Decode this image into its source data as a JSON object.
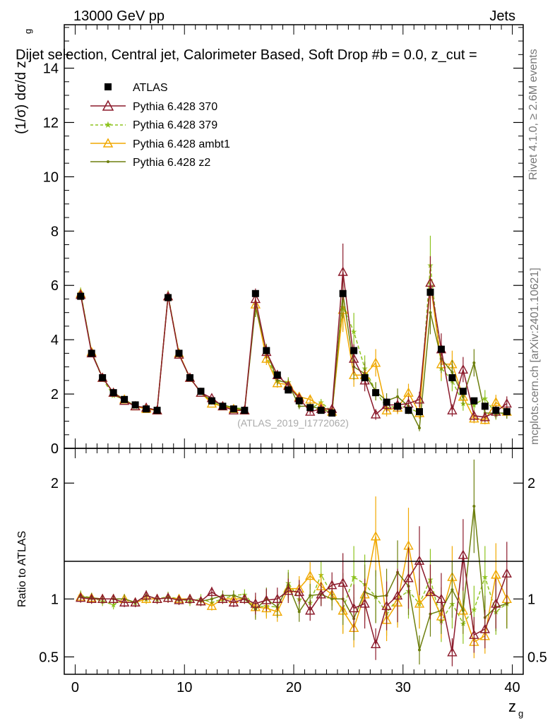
{
  "header": {
    "left": "13000 GeV pp",
    "right": "Jets",
    "title": "Dijet selection, Central jet, Calorimeter Based, Soft Drop #b = 0.0, z_cut = "
  },
  "side_labels": {
    "rivet": "Rivet 4.1.0, ≥ 2.6M events",
    "mcplots": "mcplots.cern.ch [arXiv:2401.10621]"
  },
  "watermark": "(ATLAS_2019_I1772062)",
  "colors": {
    "ATLAS": "#000000",
    "p370": "#8b1a2b",
    "p379": "#8dc31f",
    "ambt1": "#f0a800",
    "z2": "#6d7f0e"
  },
  "chart_data": [
    {
      "type": "line",
      "panel": "main",
      "ylabel": "(1/σ) dσ/d z",
      "ylabel_sub": "g",
      "ylim": [
        0,
        15.6
      ],
      "xlim": [
        -1,
        41
      ],
      "yticks": [
        0,
        2,
        4,
        6,
        8,
        10,
        12,
        14
      ],
      "x": [
        0.5,
        1.5,
        2.5,
        3.5,
        4.5,
        5.5,
        6.5,
        7.5,
        8.5,
        9.5,
        10.5,
        11.5,
        12.5,
        13.5,
        14.5,
        15.5,
        16.5,
        17.5,
        18.5,
        19.5,
        20.5,
        21.5,
        22.5,
        23.5,
        24.5,
        25.5,
        26.5,
        27.5,
        28.5,
        29.5,
        30.5,
        31.5,
        32.5,
        33.5,
        34.5,
        35.5,
        36.5,
        37.5,
        38.5,
        39.5
      ],
      "series": [
        {
          "name": "ATLAS",
          "style": "square",
          "values": [
            5.6,
            3.5,
            2.6,
            2.05,
            1.8,
            1.6,
            1.45,
            1.4,
            5.55,
            3.5,
            2.6,
            2.1,
            1.75,
            1.55,
            1.45,
            1.4,
            5.7,
            3.6,
            2.7,
            2.15,
            1.75,
            1.5,
            1.4,
            1.3,
            5.7,
            3.6,
            2.6,
            2.05,
            1.7,
            1.55,
            1.4,
            1.35,
            5.75,
            3.65,
            2.6,
            2.1,
            1.75,
            1.55,
            1.4,
            1.35
          ]
        },
        {
          "name": "Pythia 6.428 370",
          "style": "triangle-open",
          "values": [
            5.65,
            3.5,
            2.6,
            2.05,
            1.75,
            1.55,
            1.5,
            1.4,
            5.6,
            3.45,
            2.6,
            2.05,
            1.85,
            1.55,
            1.4,
            1.4,
            5.5,
            3.55,
            2.7,
            2.3,
            1.85,
            1.35,
            1.45,
            1.45,
            6.5,
            3.3,
            2.5,
            1.25,
            1.6,
            1.6,
            1.65,
            1.8,
            6.1,
            3.65,
            1.4,
            2.9,
            1.2,
            1.15,
            1.35,
            1.65
          ]
        },
        {
          "name": "Pythia 6.428 379",
          "style": "star-dashed",
          "values": [
            5.75,
            3.55,
            2.55,
            1.95,
            1.8,
            1.55,
            1.45,
            1.4,
            5.65,
            3.5,
            2.55,
            2.1,
            1.7,
            1.55,
            1.5,
            1.45,
            5.3,
            3.4,
            2.5,
            2.45,
            1.75,
            1.45,
            1.7,
            1.35,
            5.2,
            4.3,
            2.95,
            2.1,
            1.5,
            1.55,
            1.5,
            1.3,
            6.75,
            2.95,
            2.5,
            1.65,
            1.6,
            1.85,
            1.25,
            1.3
          ]
        },
        {
          "name": "Pythia 6.428 ambt1",
          "style": "triangle-open",
          "values": [
            5.7,
            3.55,
            2.6,
            2.05,
            1.8,
            1.55,
            1.45,
            1.4,
            5.6,
            3.5,
            2.6,
            2.05,
            1.65,
            1.55,
            1.45,
            1.4,
            5.3,
            3.3,
            2.4,
            2.35,
            1.9,
            1.8,
            1.55,
            1.35,
            5.1,
            2.7,
            2.7,
            3.15,
            1.4,
            1.5,
            2.05,
            1.3,
            6.1,
            3.1,
            3.1,
            1.9,
            1.1,
            1.05,
            1.7,
            1.35
          ]
        },
        {
          "name": "Pythia 6.428 z2",
          "style": "dot",
          "values": [
            5.7,
            3.55,
            2.6,
            2.05,
            1.8,
            1.55,
            1.5,
            1.4,
            5.6,
            3.45,
            2.6,
            2.05,
            1.75,
            1.6,
            1.5,
            1.4,
            5.2,
            3.6,
            2.5,
            2.4,
            1.55,
            1.55,
            1.45,
            1.3,
            5.7,
            3.0,
            2.75,
            2.1,
            1.75,
            1.9,
            1.55,
            0.75,
            5.0,
            3.3,
            2.8,
            1.9,
            3.15,
            1.3,
            1.3,
            1.3
          ]
        }
      ],
      "legend_position": "top-left"
    },
    {
      "type": "line",
      "panel": "ratio",
      "ylabel": "Ratio to ATLAS",
      "xlabel": "z",
      "xlabel_sub": "g",
      "ylim": [
        0.35,
        2.3
      ],
      "yticks": [
        0.5,
        1,
        2
      ],
      "xticks": [
        0,
        10,
        20,
        30,
        40
      ],
      "series": [
        {
          "name": "Pythia 6.428 370",
          "values": [
            1.01,
            1.0,
            1.0,
            1.0,
            0.97,
            0.97,
            1.03,
            1.0,
            1.01,
            0.99,
            1.0,
            0.98,
            1.06,
            1.0,
            0.97,
            1.0,
            0.96,
            0.99,
            1.0,
            1.07,
            1.06,
            0.9,
            1.04,
            1.12,
            1.14,
            0.92,
            0.96,
            0.61,
            0.94,
            1.03,
            1.18,
            1.33,
            1.06,
            1.0,
            0.54,
            1.38,
            0.69,
            0.74,
            0.96,
            1.22
          ]
        },
        {
          "name": "Pythia 6.428 379",
          "values": [
            1.03,
            1.01,
            0.98,
            0.95,
            1.0,
            0.97,
            1.0,
            1.0,
            1.02,
            1.0,
            0.98,
            1.0,
            0.97,
            1.0,
            1.03,
            1.04,
            0.93,
            0.94,
            0.93,
            1.14,
            1.0,
            0.97,
            1.21,
            1.04,
            0.91,
            1.19,
            1.13,
            1.02,
            0.88,
            1.0,
            1.07,
            0.96,
            1.17,
            0.81,
            0.96,
            0.79,
            0.91,
            1.19,
            0.89,
            0.96
          ]
        },
        {
          "name": "Pythia 6.428 ambt1",
          "values": [
            1.02,
            1.01,
            1.0,
            1.0,
            1.0,
            0.97,
            1.0,
            1.0,
            1.01,
            1.0,
            1.0,
            0.98,
            0.94,
            1.0,
            1.0,
            1.0,
            0.93,
            0.92,
            0.89,
            1.09,
            1.09,
            1.2,
            1.11,
            1.04,
            0.9,
            0.75,
            1.04,
            1.54,
            0.82,
            0.97,
            1.46,
            0.96,
            1.06,
            0.85,
            1.19,
            0.9,
            0.63,
            0.68,
            1.21,
            1.0
          ]
        },
        {
          "name": "Pythia 6.428 z2",
          "values": [
            1.02,
            1.01,
            1.0,
            1.0,
            1.0,
            0.97,
            1.03,
            1.0,
            1.01,
            0.99,
            1.0,
            0.98,
            1.0,
            1.03,
            1.03,
            1.0,
            0.91,
            1.0,
            0.93,
            1.12,
            0.89,
            1.03,
            1.04,
            1.0,
            1.0,
            0.83,
            1.06,
            1.02,
            1.03,
            1.23,
            1.11,
            0.56,
            0.87,
            0.9,
            1.08,
            0.9,
            1.8,
            0.84,
            0.93,
            0.96
          ]
        }
      ]
    }
  ]
}
